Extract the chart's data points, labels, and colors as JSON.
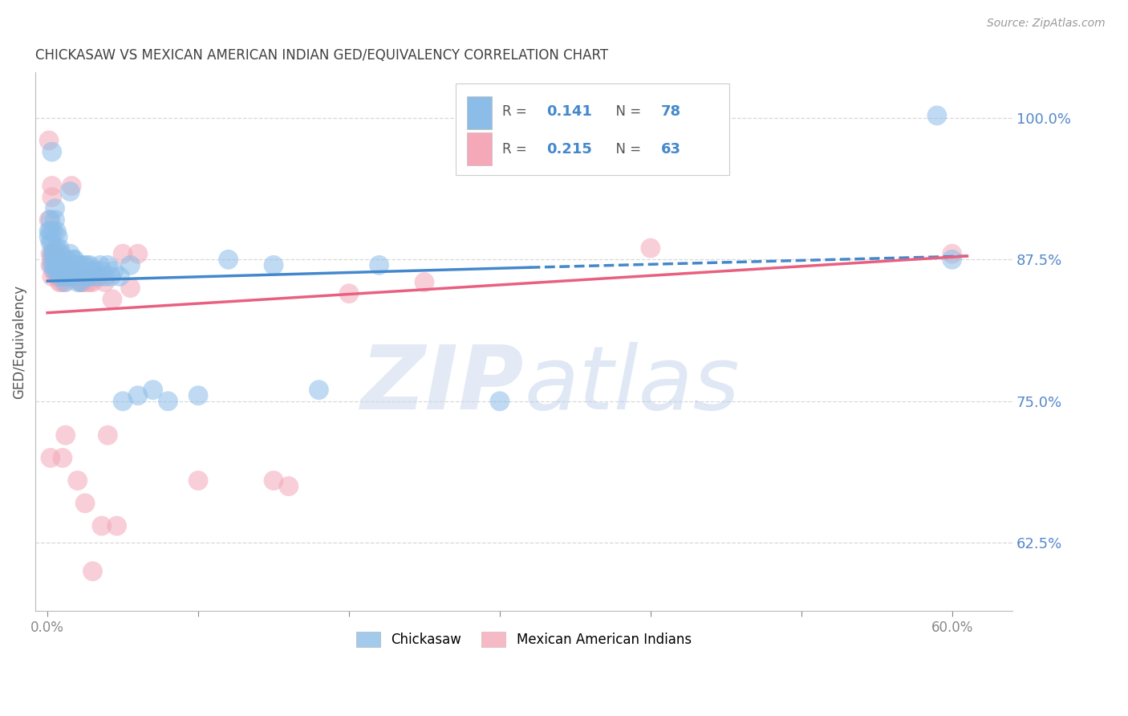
{
  "title": "CHICKASAW VS MEXICAN AMERICAN INDIAN GED/EQUIVALENCY CORRELATION CHART",
  "source": "Source: ZipAtlas.com",
  "ylabel": "GED/Equivalency",
  "yticks": [
    0.625,
    0.75,
    0.875,
    1.0
  ],
  "ytick_labels": [
    "62.5%",
    "75.0%",
    "87.5%",
    "100.0%"
  ],
  "xticks": [
    0.0,
    0.1,
    0.2,
    0.3,
    0.4,
    0.5,
    0.6
  ],
  "xtick_labels": [
    "0.0%",
    "",
    "",
    "",
    "",
    "",
    "60.0%"
  ],
  "xlim": [
    -0.008,
    0.64
  ],
  "ylim": [
    0.565,
    1.04
  ],
  "chickasaw_color": "#8bbde8",
  "mexican_color": "#f4a8b8",
  "chickasaw_line_color": "#4488cc",
  "mexican_line_color": "#e86080",
  "watermark_color": "#ccd8ee",
  "background_color": "#ffffff",
  "grid_color": "#d8d8d8",
  "right_label_color": "#5588cc",
  "title_color": "#404040",
  "legend_box_color": "#f0f0f0",
  "chickasaw_line": {
    "x0": 0.0,
    "x1": 0.32,
    "x1_dash": 0.61,
    "y0": 0.856,
    "y1": 0.868,
    "y1_dash": 0.878
  },
  "mexican_line": {
    "x0": 0.0,
    "x1": 0.61,
    "y0": 0.828,
    "y1": 0.878
  },
  "chickasaw_scatter": [
    [
      0.001,
      0.9
    ],
    [
      0.001,
      0.895
    ],
    [
      0.002,
      0.91
    ],
    [
      0.002,
      0.9
    ],
    [
      0.002,
      0.89
    ],
    [
      0.003,
      0.89
    ],
    [
      0.003,
      0.88
    ],
    [
      0.003,
      0.87
    ],
    [
      0.004,
      0.9
    ],
    [
      0.004,
      0.88
    ],
    [
      0.004,
      0.87
    ],
    [
      0.005,
      0.92
    ],
    [
      0.005,
      0.91
    ],
    [
      0.005,
      0.88
    ],
    [
      0.005,
      0.865
    ],
    [
      0.006,
      0.9
    ],
    [
      0.006,
      0.885
    ],
    [
      0.006,
      0.87
    ],
    [
      0.007,
      0.895
    ],
    [
      0.007,
      0.875
    ],
    [
      0.007,
      0.865
    ],
    [
      0.008,
      0.885
    ],
    [
      0.008,
      0.87
    ],
    [
      0.008,
      0.86
    ],
    [
      0.009,
      0.88
    ],
    [
      0.009,
      0.865
    ],
    [
      0.01,
      0.875
    ],
    [
      0.01,
      0.865
    ],
    [
      0.011,
      0.875
    ],
    [
      0.011,
      0.86
    ],
    [
      0.012,
      0.87
    ],
    [
      0.012,
      0.855
    ],
    [
      0.013,
      0.875
    ],
    [
      0.013,
      0.86
    ],
    [
      0.014,
      0.87
    ],
    [
      0.015,
      0.935
    ],
    [
      0.015,
      0.88
    ],
    [
      0.016,
      0.87
    ],
    [
      0.017,
      0.875
    ],
    [
      0.017,
      0.86
    ],
    [
      0.018,
      0.875
    ],
    [
      0.019,
      0.865
    ],
    [
      0.02,
      0.87
    ],
    [
      0.02,
      0.855
    ],
    [
      0.021,
      0.865
    ],
    [
      0.022,
      0.87
    ],
    [
      0.022,
      0.855
    ],
    [
      0.023,
      0.865
    ],
    [
      0.024,
      0.87
    ],
    [
      0.025,
      0.86
    ],
    [
      0.026,
      0.87
    ],
    [
      0.027,
      0.86
    ],
    [
      0.028,
      0.87
    ],
    [
      0.029,
      0.86
    ],
    [
      0.03,
      0.865
    ],
    [
      0.032,
      0.865
    ],
    [
      0.033,
      0.86
    ],
    [
      0.035,
      0.87
    ],
    [
      0.036,
      0.865
    ],
    [
      0.038,
      0.86
    ],
    [
      0.04,
      0.87
    ],
    [
      0.042,
      0.86
    ],
    [
      0.044,
      0.865
    ],
    [
      0.048,
      0.86
    ],
    [
      0.05,
      0.75
    ],
    [
      0.055,
      0.87
    ],
    [
      0.06,
      0.755
    ],
    [
      0.07,
      0.76
    ],
    [
      0.08,
      0.75
    ],
    [
      0.1,
      0.755
    ],
    [
      0.12,
      0.875
    ],
    [
      0.15,
      0.87
    ],
    [
      0.18,
      0.76
    ],
    [
      0.22,
      0.87
    ],
    [
      0.3,
      0.75
    ],
    [
      0.6,
      0.875
    ],
    [
      0.003,
      0.97
    ],
    [
      0.59,
      1.002
    ]
  ],
  "mexican_scatter": [
    [
      0.001,
      0.98
    ],
    [
      0.001,
      0.91
    ],
    [
      0.002,
      0.88
    ],
    [
      0.002,
      0.87
    ],
    [
      0.002,
      0.7
    ],
    [
      0.003,
      0.94
    ],
    [
      0.003,
      0.93
    ],
    [
      0.003,
      0.875
    ],
    [
      0.003,
      0.86
    ],
    [
      0.004,
      0.88
    ],
    [
      0.004,
      0.865
    ],
    [
      0.005,
      0.88
    ],
    [
      0.005,
      0.87
    ],
    [
      0.006,
      0.875
    ],
    [
      0.006,
      0.86
    ],
    [
      0.007,
      0.88
    ],
    [
      0.007,
      0.86
    ],
    [
      0.008,
      0.87
    ],
    [
      0.008,
      0.855
    ],
    [
      0.009,
      0.87
    ],
    [
      0.009,
      0.855
    ],
    [
      0.01,
      0.87
    ],
    [
      0.01,
      0.7
    ],
    [
      0.011,
      0.865
    ],
    [
      0.011,
      0.855
    ],
    [
      0.012,
      0.865
    ],
    [
      0.012,
      0.72
    ],
    [
      0.013,
      0.86
    ],
    [
      0.014,
      0.86
    ],
    [
      0.015,
      0.865
    ],
    [
      0.016,
      0.94
    ],
    [
      0.017,
      0.865
    ],
    [
      0.018,
      0.86
    ],
    [
      0.019,
      0.87
    ],
    [
      0.02,
      0.86
    ],
    [
      0.02,
      0.68
    ],
    [
      0.021,
      0.86
    ],
    [
      0.022,
      0.855
    ],
    [
      0.023,
      0.855
    ],
    [
      0.024,
      0.855
    ],
    [
      0.025,
      0.86
    ],
    [
      0.025,
      0.66
    ],
    [
      0.026,
      0.855
    ],
    [
      0.028,
      0.855
    ],
    [
      0.03,
      0.855
    ],
    [
      0.03,
      0.6
    ],
    [
      0.033,
      0.86
    ],
    [
      0.035,
      0.86
    ],
    [
      0.036,
      0.64
    ],
    [
      0.038,
      0.855
    ],
    [
      0.04,
      0.72
    ],
    [
      0.043,
      0.84
    ],
    [
      0.046,
      0.64
    ],
    [
      0.05,
      0.88
    ],
    [
      0.055,
      0.85
    ],
    [
      0.06,
      0.88
    ],
    [
      0.1,
      0.68
    ],
    [
      0.15,
      0.68
    ],
    [
      0.16,
      0.675
    ],
    [
      0.2,
      0.845
    ],
    [
      0.25,
      0.855
    ],
    [
      0.4,
      0.885
    ],
    [
      0.6,
      0.88
    ]
  ]
}
